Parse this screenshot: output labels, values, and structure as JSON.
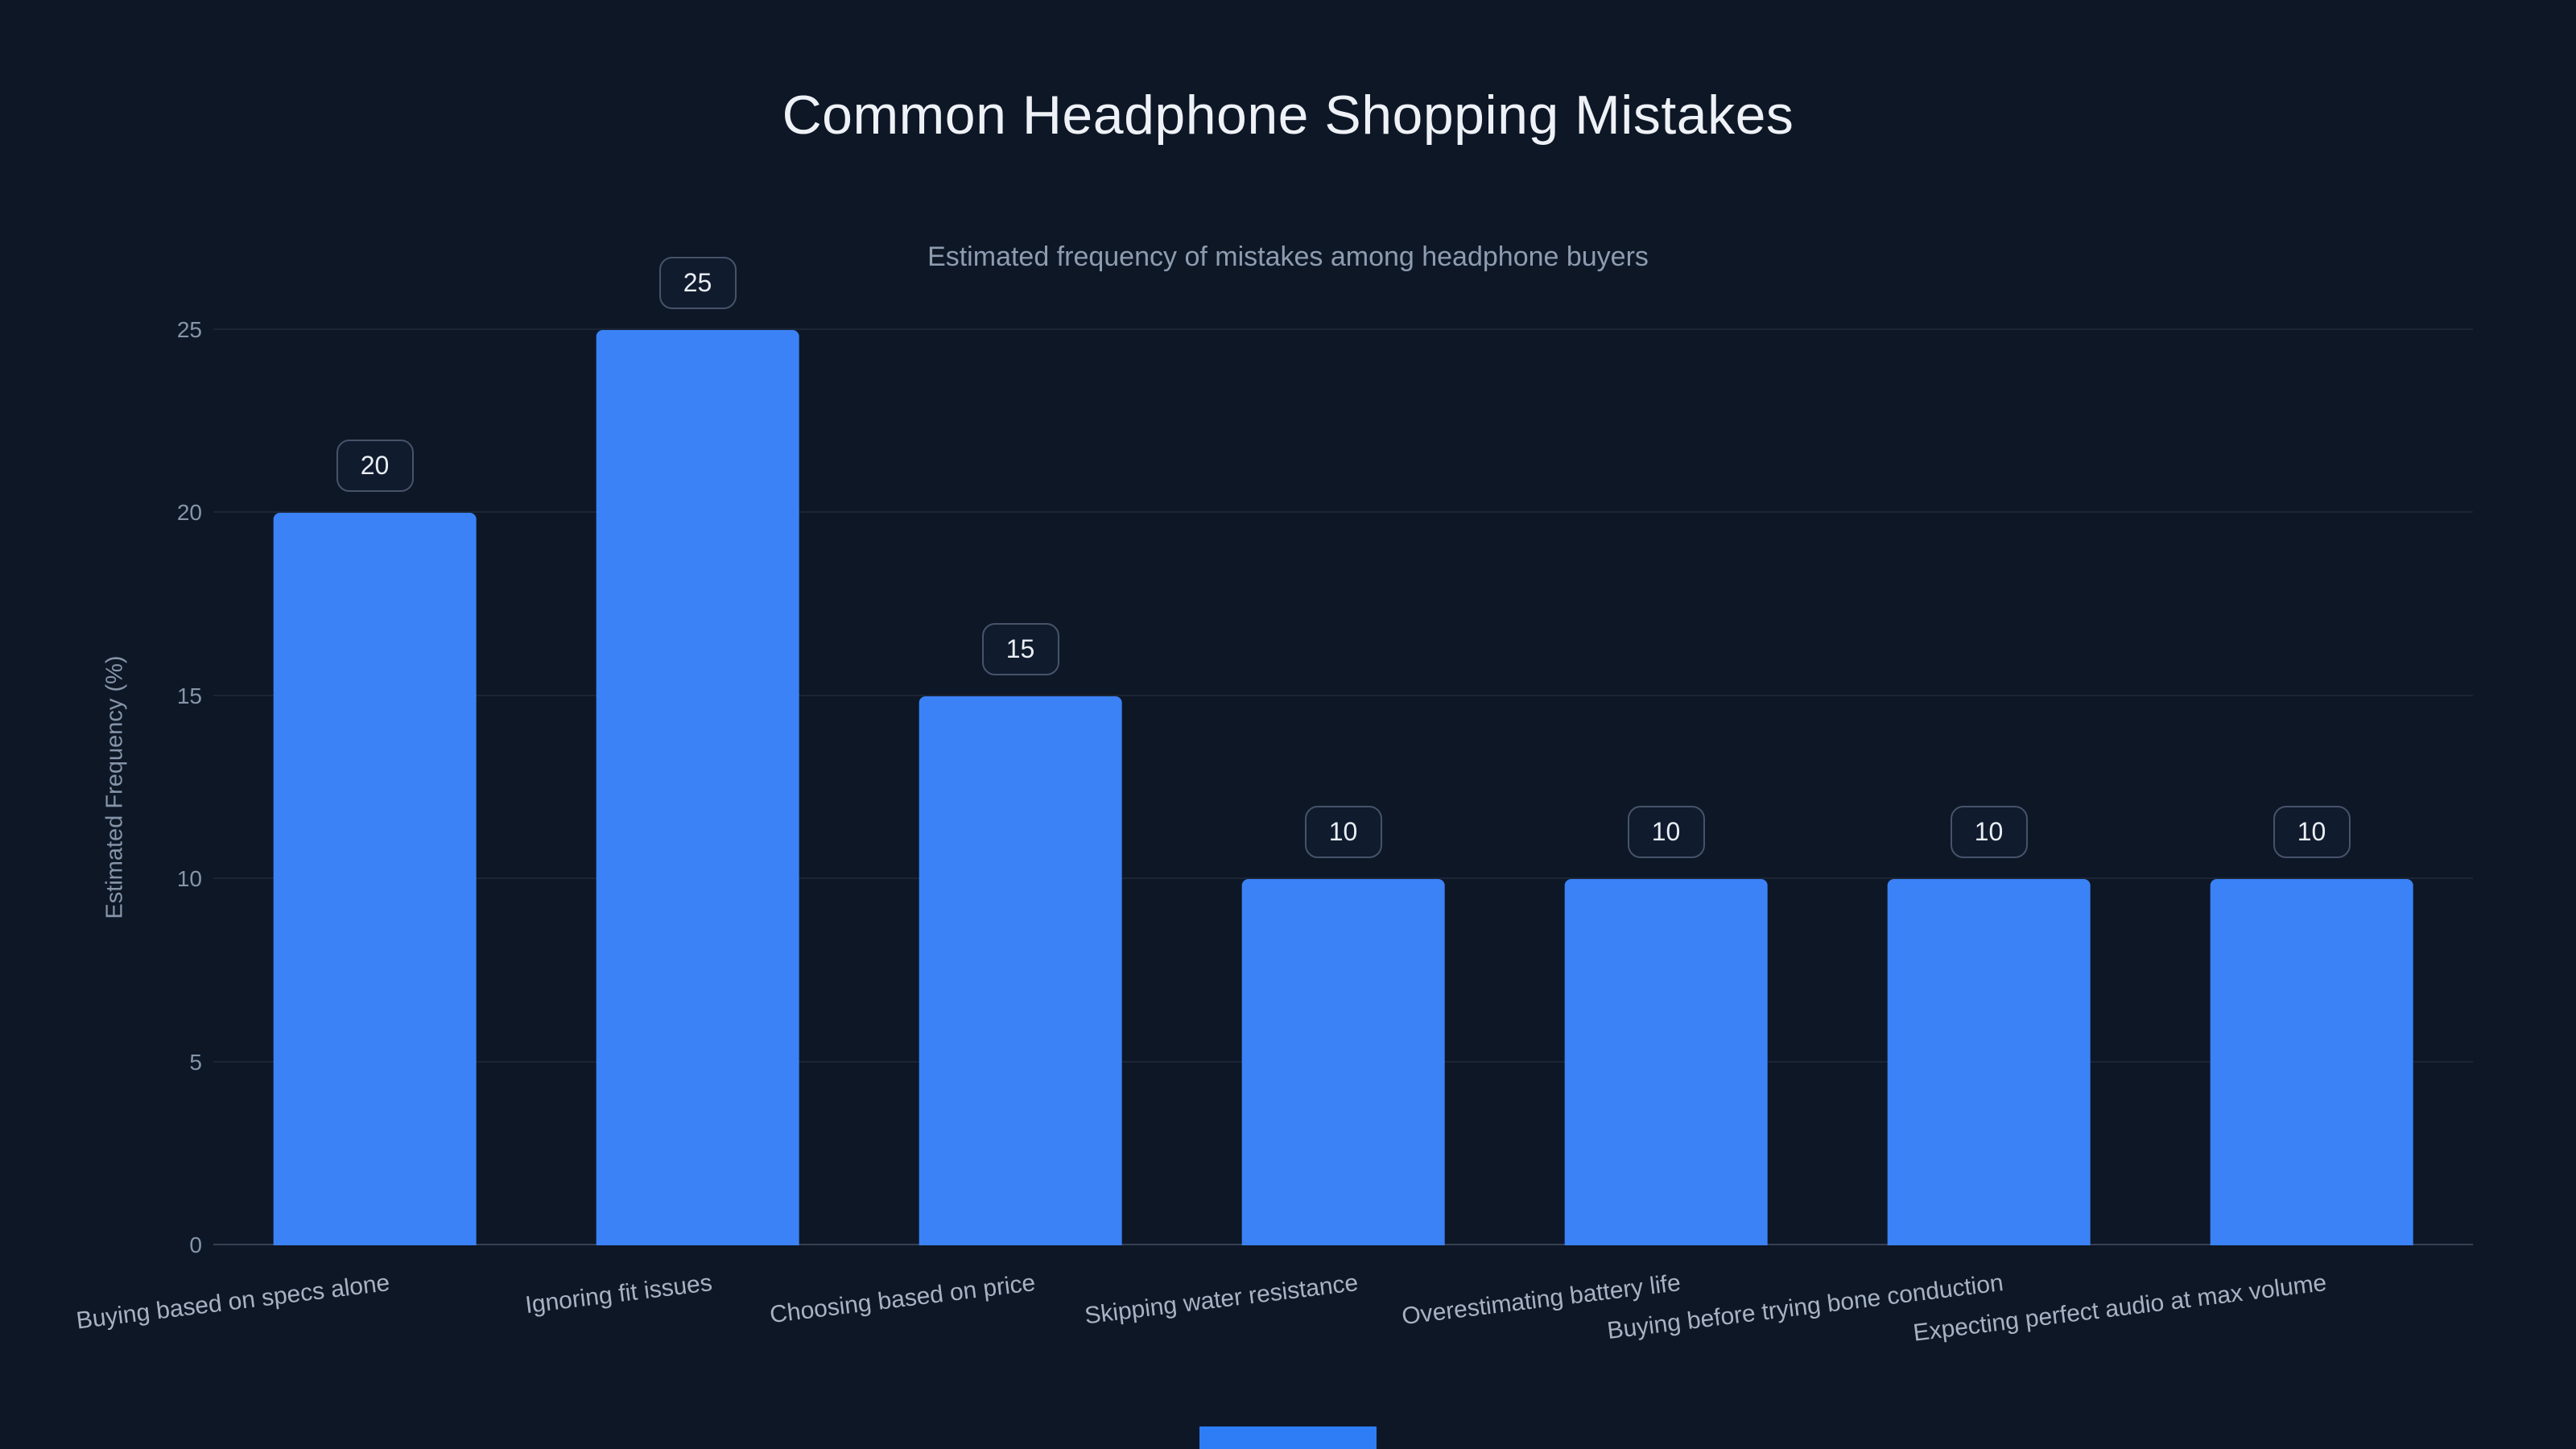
{
  "chart_data": {
    "type": "bar",
    "title": "Common Headphone Shopping Mistakes",
    "subtitle": "Estimated frequency of mistakes among headphone buyers",
    "categories": [
      "Buying based on specs alone",
      "Ignoring fit issues",
      "Choosing based on price",
      "Skipping water resistance",
      "Overestimating battery life",
      "Buying before trying bone conduction",
      "Expecting perfect audio at max volume"
    ],
    "values": [
      20,
      25,
      15,
      10,
      10,
      10,
      10
    ],
    "value_labels": [
      "20",
      "25",
      "15",
      "10",
      "10",
      "10",
      "10"
    ],
    "xlabel": "",
    "ylabel": "Estimated Frequency (%)",
    "ylim": [
      0,
      25
    ],
    "yticks": [
      0,
      5,
      10,
      15,
      20,
      25
    ],
    "grid": true,
    "legend": false,
    "bar_color": "#3b82f6"
  },
  "colors": {
    "background": "#0e1726",
    "bar": "#3b82f6",
    "accent": "#2e7cf6",
    "grid": "rgba(148,163,184,0.10)",
    "text_primary": "#eef2f7",
    "text_muted": "#8e9cb0"
  }
}
